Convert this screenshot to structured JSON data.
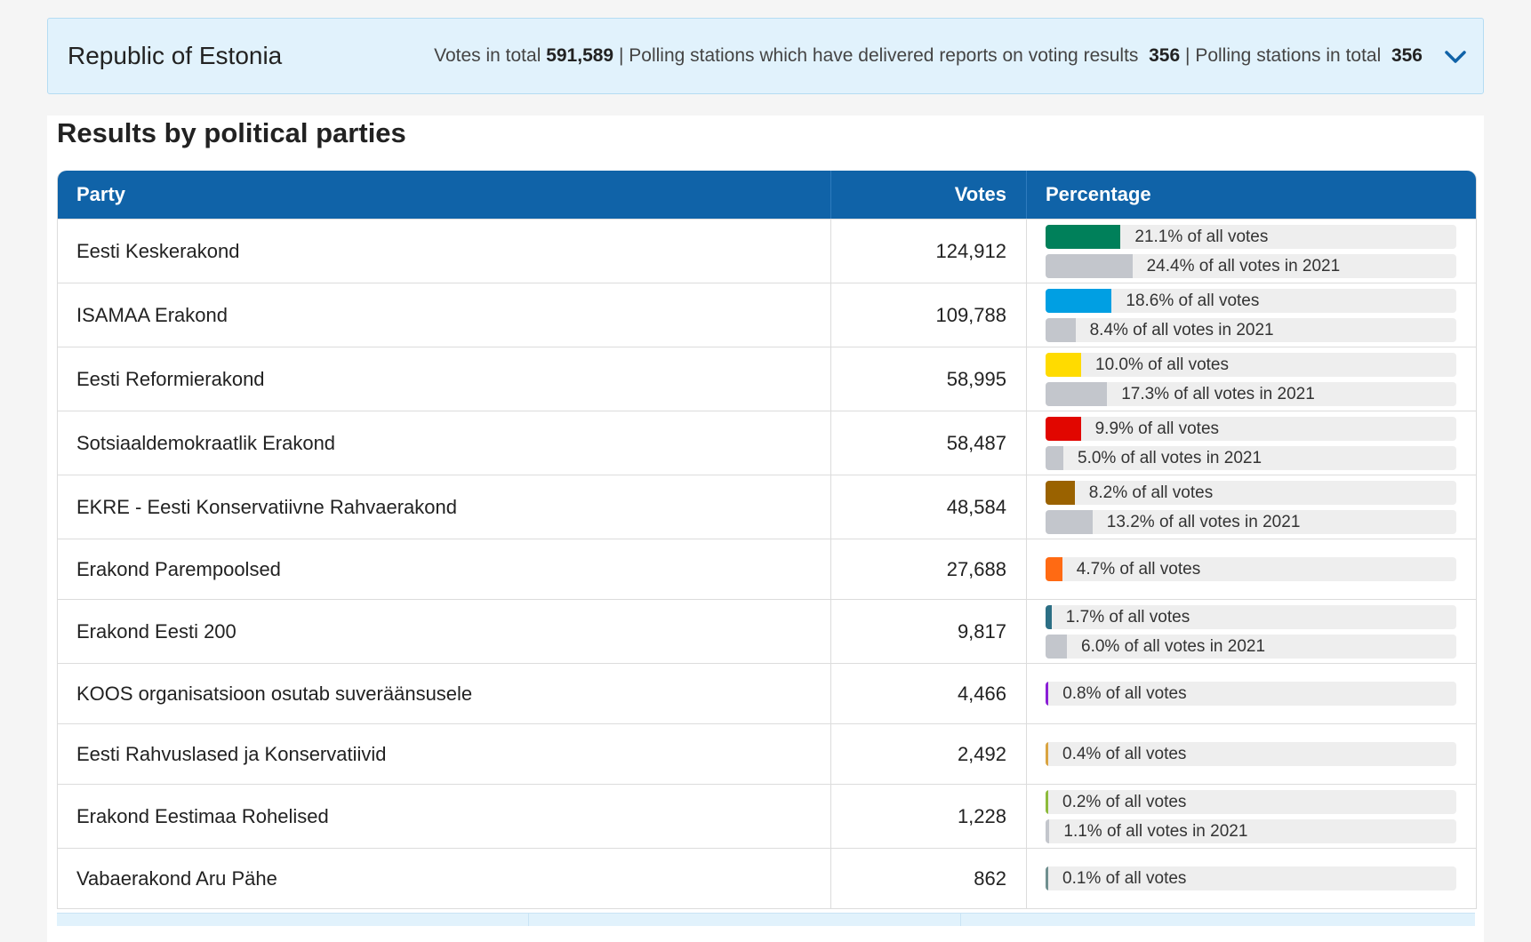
{
  "summary": {
    "region": "Republic of Estonia",
    "votes_label": "Votes in total",
    "votes_value": "591,589",
    "reports_label": "Polling stations which have delivered reports on voting results",
    "reports_value": "356",
    "stations_label": "Polling stations in total",
    "stations_value": "356",
    "sep": "|",
    "toggle_icon": "chevron-down-icon"
  },
  "results": {
    "title": "Results by political parties",
    "headers": {
      "party": "Party",
      "votes": "Votes",
      "percentage": "Percentage"
    },
    "rows": [
      {
        "party": "Eesti Keskerakond",
        "votes": "124,912",
        "color": "#00805a",
        "pct": 21.1,
        "pct_label": "21.1% of all votes",
        "prev": 24.4,
        "prev_label": "24.4% of all votes in 2021"
      },
      {
        "party": "ISAMAA Erakond",
        "votes": "109,788",
        "color": "#009fe3",
        "pct": 18.6,
        "pct_label": "18.6% of all votes",
        "prev": 8.4,
        "prev_label": "8.4% of all votes in 2021"
      },
      {
        "party": "Eesti Reformierakond",
        "votes": "58,995",
        "color": "#ffdb00",
        "pct": 10.0,
        "pct_label": "10.0% of all votes",
        "prev": 17.3,
        "prev_label": "17.3% of all votes in 2021"
      },
      {
        "party": "Sotsiaaldemokraatlik Erakond",
        "votes": "58,487",
        "color": "#e10600",
        "pct": 9.9,
        "pct_label": "9.9% of all votes",
        "prev": 5.0,
        "prev_label": "5.0% of all votes in 2021"
      },
      {
        "party": "EKRE - Eesti Konservatiivne Rahvaerakond",
        "votes": "48,584",
        "color": "#9a6200",
        "pct": 8.2,
        "pct_label": "8.2% of all votes",
        "prev": 13.2,
        "prev_label": "13.2% of all votes in 2021"
      },
      {
        "party": "Erakond Parempoolsed",
        "votes": "27,688",
        "color": "#ff6a13",
        "pct": 4.7,
        "pct_label": "4.7% of all votes",
        "prev": null,
        "prev_label": null
      },
      {
        "party": "Erakond Eesti 200",
        "votes": "9,817",
        "color": "#2c6f85",
        "pct": 1.7,
        "pct_label": "1.7% of all votes",
        "prev": 6.0,
        "prev_label": "6.0% of all votes in 2021"
      },
      {
        "party": "KOOS organisatsioon osutab suveräänsusele",
        "votes": "4,466",
        "color": "#8a1ed6",
        "pct": 0.8,
        "pct_label": "0.8% of all votes",
        "prev": null,
        "prev_label": null
      },
      {
        "party": "Eesti Rahvuslased ja Konservatiivid",
        "votes": "2,492",
        "color": "#d9a441",
        "pct": 0.4,
        "pct_label": "0.4% of all votes",
        "prev": null,
        "prev_label": null
      },
      {
        "party": "Erakond Eestimaa Rohelised",
        "votes": "1,228",
        "color": "#8dbb3c",
        "pct": 0.2,
        "pct_label": "0.2% of all votes",
        "prev": 1.1,
        "prev_label": "1.1% of all votes in 2021"
      },
      {
        "party": "Vabaerakond Aru Pähe",
        "votes": "862",
        "color": "#6f8f8f",
        "pct": 0.1,
        "pct_label": "0.1% of all votes",
        "prev": null,
        "prev_label": null
      }
    ],
    "prev_color": "#c3c6cc"
  }
}
